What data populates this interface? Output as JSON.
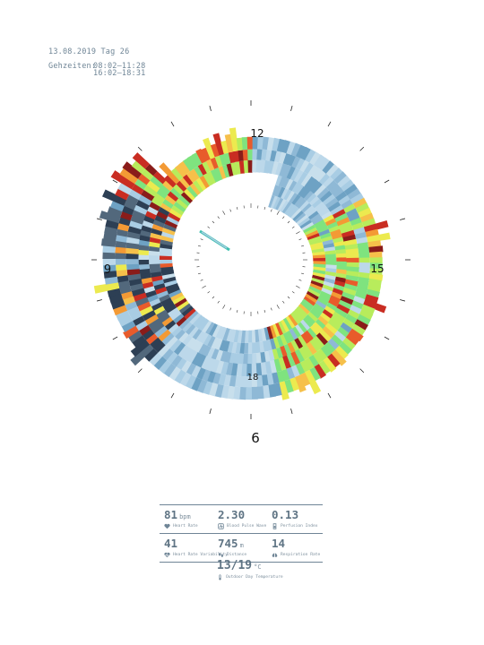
{
  "header": {
    "date_day": "13.08.2019 Tag 26",
    "hours_label": "Gehzeiten:",
    "hours_1": "08:02–11:28",
    "hours_2": "16:02–18:31"
  },
  "clock": {
    "labels": {
      "twelve": "12",
      "fifteen": "15",
      "nine": "9",
      "eighteen": "18",
      "six": "6"
    }
  },
  "colors": {
    "text": "#6f8596",
    "palette": [
      "#a9cde4",
      "#bcd8ea",
      "#8fb9d6",
      "#c8dfec",
      "#6ea2c4",
      "#7fe37f",
      "#b8ec5c",
      "#ecea4f",
      "#f6c04a",
      "#f39a35",
      "#e85b2b",
      "#c92d22",
      "#8a1c1a",
      "#2d3f54",
      "#52687c",
      "#3fc0b0"
    ]
  },
  "metrics": [
    {
      "value": "81",
      "unit": "bpm",
      "label": "Heart Rate",
      "icon": "heart-icon"
    },
    {
      "value": "2.30",
      "unit": "",
      "label": "Blood Pulse Wave",
      "icon": "pulse-wave-icon"
    },
    {
      "value": "0.13",
      "unit": "",
      "label": "Perfusion Index",
      "icon": "perfusion-icon"
    },
    {
      "value": "41",
      "unit": "",
      "label": "Heart Rate Variability",
      "icon": "hrv-icon"
    },
    {
      "value": "745",
      "unit": "m",
      "label": "Distance",
      "icon": "footsteps-icon"
    },
    {
      "value": "14",
      "unit": "",
      "label": "Respiration Rate",
      "icon": "lungs-icon"
    }
  ],
  "temperature": {
    "value": "13/19",
    "unit": "°C",
    "label": "Outdoor Day Temperature",
    "icon": "thermometer-icon"
  }
}
